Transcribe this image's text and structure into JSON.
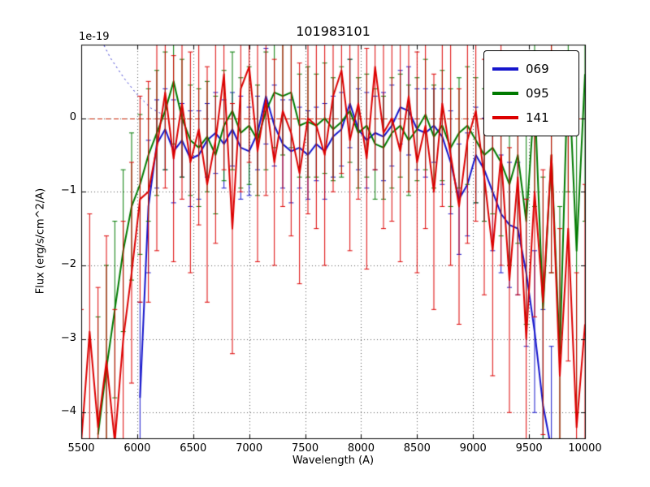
{
  "title": "101983101",
  "offset_text": "1e-19",
  "chart_data": {
    "type": "line",
    "title": "101983101",
    "xlabel": "Wavelength (A)",
    "ylabel": "Flux (erg/s/cm^2/A)",
    "y_offset_factor": "1e-19",
    "xlim": [
      5500,
      10000
    ],
    "ylim": [
      -4.35,
      1.0
    ],
    "grid": true,
    "grid_style": "dotted",
    "x_ticks": [
      5500,
      6000,
      6500,
      7000,
      7500,
      8000,
      8500,
      9000,
      9500,
      10000
    ],
    "x_tick_labels": [
      "5500",
      "6000",
      "6500",
      "7000",
      "7500",
      "8000",
      "8500",
      "9000",
      "9500",
      "10000"
    ],
    "y_ticks": [
      0,
      -1,
      -2,
      -3,
      -4
    ],
    "y_tick_labels": [
      "0",
      "−1",
      "−2",
      "−3",
      "−4"
    ],
    "legend": {
      "position": "upper right",
      "entries": [
        "069",
        "095",
        "141"
      ]
    },
    "zero_line": {
      "y": 0,
      "color": "#cc2200",
      "style": "dashed"
    },
    "guide_line": {
      "color": "#2222cc",
      "style": "dotted",
      "x": [
        5540,
        5650,
        5760,
        5880,
        6000,
        6120,
        6240
      ],
      "y": [
        1.6,
        1.15,
        0.82,
        0.55,
        0.32,
        0.14,
        0.04
      ]
    },
    "x_start": 5500,
    "x_step": 75,
    "series": [
      {
        "name": "069",
        "color": "#1515cc",
        "values": [
          null,
          null,
          null,
          null,
          null,
          null,
          null,
          -3.8,
          -1.2,
          -0.35,
          -0.15,
          -0.45,
          -0.3,
          -0.55,
          -0.5,
          -0.3,
          -0.2,
          -0.35,
          -0.15,
          -0.4,
          -0.45,
          -0.2,
          0.3,
          -0.1,
          -0.35,
          -0.45,
          -0.4,
          -0.5,
          -0.35,
          -0.45,
          -0.25,
          -0.15,
          0.2,
          -0.15,
          -0.3,
          -0.2,
          -0.25,
          -0.1,
          0.15,
          0.1,
          -0.15,
          -0.2,
          -0.1,
          -0.25,
          -0.6,
          -1.1,
          -0.9,
          -0.5,
          -0.7,
          -1.0,
          -1.3,
          -1.45,
          -1.5,
          -2.1,
          -2.9,
          -3.9,
          -4.5,
          null,
          null,
          null,
          null
        ],
        "errors": [
          null,
          null,
          null,
          null,
          null,
          null,
          null,
          1.3,
          0.9,
          0.6,
          0.55,
          0.7,
          0.5,
          0.65,
          0.6,
          0.5,
          0.55,
          0.6,
          0.5,
          0.7,
          0.6,
          0.5,
          0.65,
          0.55,
          0.6,
          0.7,
          0.55,
          0.6,
          0.5,
          0.65,
          0.55,
          0.5,
          0.6,
          0.55,
          0.65,
          0.5,
          0.6,
          0.55,
          0.5,
          0.6,
          0.55,
          0.6,
          0.5,
          0.65,
          0.7,
          0.75,
          0.7,
          0.65,
          0.7,
          0.8,
          0.8,
          0.85,
          0.9,
          1.0,
          1.1,
          1.3,
          1.4,
          null,
          null,
          null,
          null
        ]
      },
      {
        "name": "095",
        "color": "#007a00",
        "values": [
          null,
          null,
          -4.3,
          -3.4,
          -2.6,
          -1.8,
          -1.2,
          -0.9,
          -0.5,
          -0.2,
          0.1,
          0.5,
          0.0,
          -0.3,
          -0.4,
          -0.25,
          -0.5,
          -0.1,
          0.1,
          -0.2,
          -0.1,
          -0.3,
          0.1,
          0.35,
          0.3,
          0.35,
          -0.1,
          -0.05,
          -0.1,
          0.0,
          -0.15,
          -0.05,
          0.1,
          -0.2,
          -0.1,
          -0.35,
          -0.4,
          -0.2,
          -0.1,
          -0.3,
          -0.15,
          0.05,
          -0.25,
          -0.1,
          -0.4,
          -0.2,
          -0.1,
          -0.3,
          -0.5,
          -0.4,
          -0.6,
          -0.9,
          -0.5,
          -1.4,
          0.3,
          -2.6,
          -0.5,
          -3.2,
          0.8,
          -1.8,
          0.6
        ],
        "errors": [
          null,
          null,
          1.6,
          1.4,
          1.2,
          1.1,
          1.0,
          0.95,
          0.9,
          0.85,
          0.8,
          0.85,
          0.8,
          0.75,
          0.8,
          0.75,
          0.8,
          0.75,
          0.8,
          0.75,
          0.8,
          0.75,
          0.8,
          0.75,
          0.8,
          0.75,
          0.7,
          0.75,
          0.7,
          0.75,
          0.7,
          0.75,
          0.7,
          0.75,
          0.7,
          0.75,
          0.7,
          0.75,
          0.7,
          0.75,
          0.7,
          0.75,
          0.7,
          0.75,
          0.8,
          0.75,
          0.8,
          0.85,
          0.9,
          0.9,
          1.0,
          1.1,
          1.2,
          1.4,
          1.5,
          1.8,
          1.6,
          2.0,
          1.8,
          2.2,
          2.0
        ]
      },
      {
        "name": "141",
        "color": "#dd0000",
        "values": [
          -4.4,
          -2.9,
          -4.2,
          -3.3,
          -4.4,
          -3.0,
          -2.1,
          -1.1,
          -1.0,
          -0.4,
          0.35,
          -0.55,
          0.2,
          -0.6,
          -0.15,
          -0.9,
          -0.3,
          0.6,
          -1.5,
          0.4,
          0.7,
          -0.45,
          0.25,
          -0.6,
          0.1,
          -0.2,
          -0.75,
          0.0,
          -0.1,
          -0.5,
          0.3,
          0.65,
          -0.3,
          0.2,
          -0.55,
          0.7,
          -0.2,
          0.0,
          -0.45,
          0.3,
          -0.6,
          -0.1,
          -1.0,
          0.2,
          -0.5,
          -1.2,
          -0.3,
          0.1,
          -0.8,
          -1.8,
          -0.5,
          -2.2,
          -0.8,
          -3.0,
          -1.0,
          -2.5,
          -0.5,
          -3.5,
          -1.5,
          -4.2,
          -2.8
        ],
        "errors": [
          1.8,
          1.6,
          1.9,
          1.7,
          1.8,
          1.6,
          1.5,
          1.4,
          1.5,
          1.4,
          1.3,
          1.4,
          1.3,
          1.5,
          1.3,
          1.6,
          1.4,
          1.3,
          1.7,
          1.4,
          1.3,
          1.5,
          1.3,
          1.4,
          1.3,
          1.4,
          1.5,
          1.3,
          1.4,
          1.5,
          1.3,
          1.4,
          1.5,
          1.3,
          1.5,
          1.4,
          1.3,
          1.4,
          1.5,
          1.3,
          1.5,
          1.4,
          1.6,
          1.4,
          1.5,
          1.6,
          1.4,
          1.5,
          1.6,
          1.7,
          1.5,
          1.8,
          1.6,
          1.9,
          1.7,
          1.8,
          1.6,
          2.0,
          1.8,
          2.1,
          1.9
        ]
      }
    ]
  }
}
